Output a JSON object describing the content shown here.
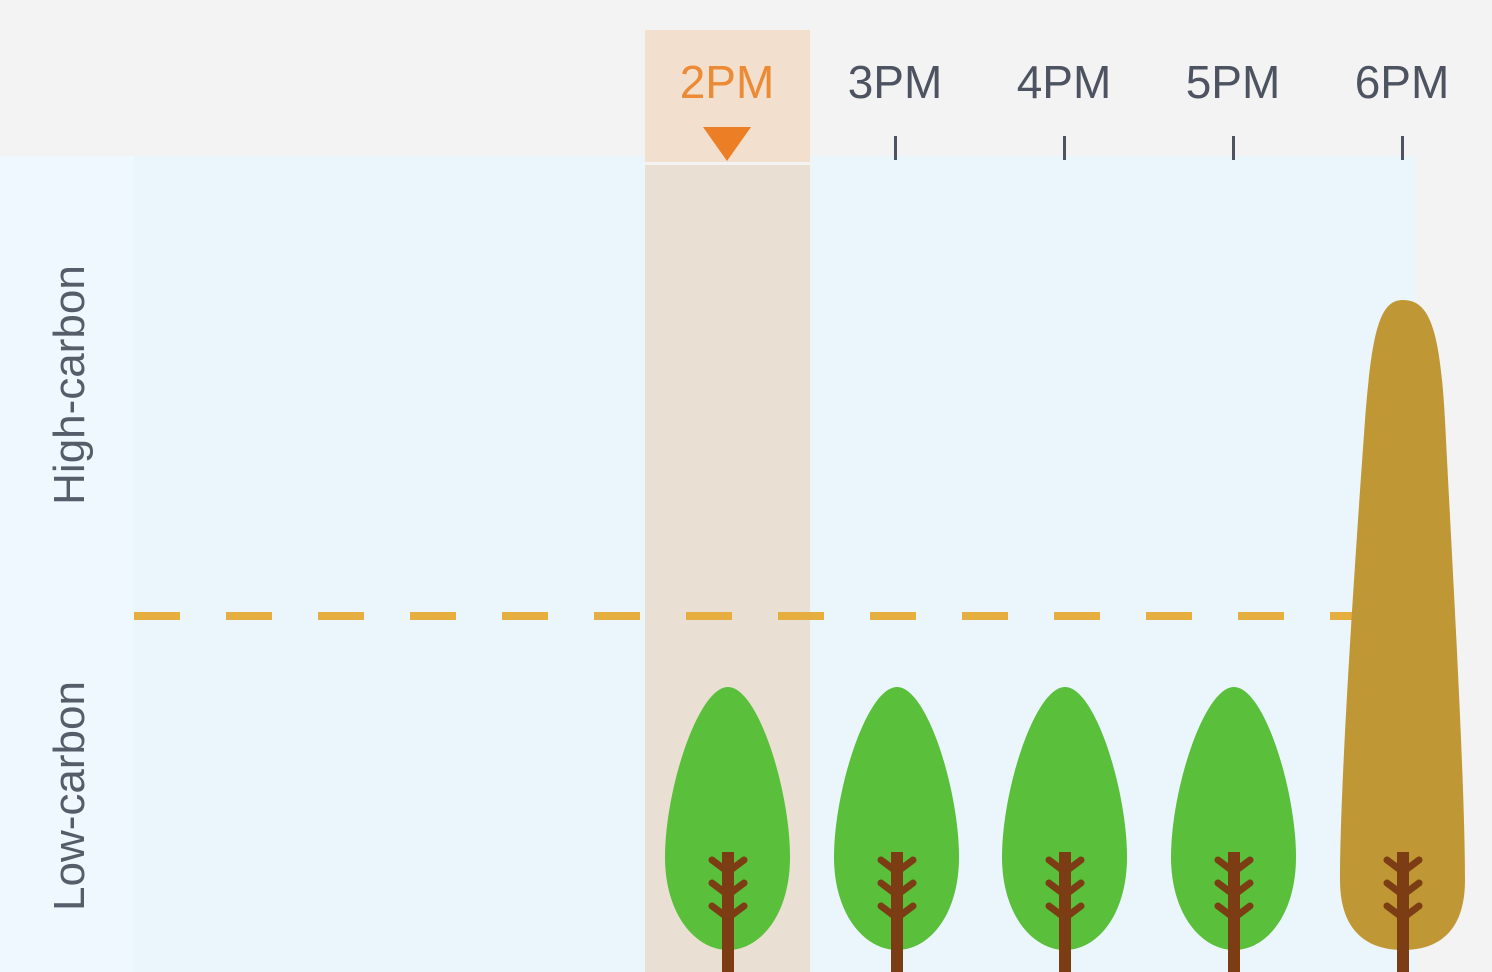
{
  "timeline": {
    "current_hour": "2PM",
    "hours": [
      {
        "label": "2PM",
        "carbon_level": "low",
        "current": true
      },
      {
        "label": "3PM",
        "carbon_level": "low",
        "current": false
      },
      {
        "label": "4PM",
        "carbon_level": "low",
        "current": false
      },
      {
        "label": "5PM",
        "carbon_level": "low",
        "current": false
      },
      {
        "label": "6PM",
        "carbon_level": "high",
        "current": false
      }
    ]
  },
  "axis": {
    "high_label": "High-carbon",
    "low_label": "Low-carbon"
  },
  "colors": {
    "current_label": "#ec8a35",
    "label": "#4d5360",
    "threshold_line": "#e6ae3f",
    "tree_low": "#5abf3b",
    "tree_high": "#c09735",
    "trunk": "#7c3d14"
  },
  "icons": {
    "now_marker": "triangle-down-icon",
    "low_tree": "green-tree-icon",
    "high_tree": "brown-tree-icon"
  }
}
